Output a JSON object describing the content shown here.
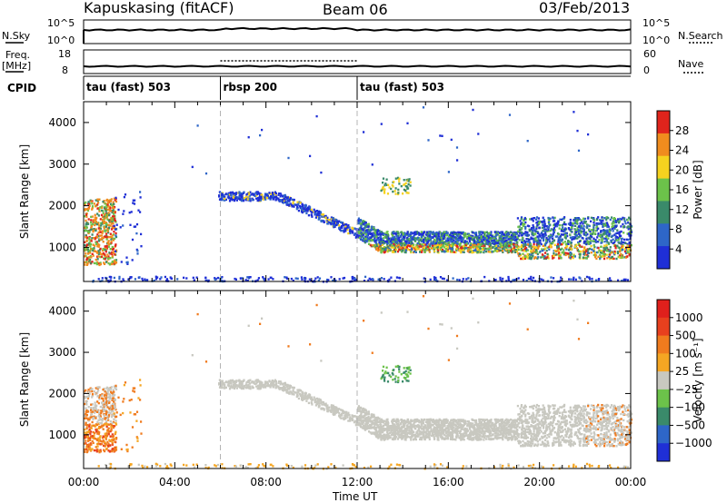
{
  "header": {
    "station": "Kapuskasing (fitACF)",
    "beam": "Beam 06",
    "date": "03/Feb/2013"
  },
  "noise_panel": {
    "left_label": "N.Sky",
    "right_label": "N.Search",
    "left_ticks": [
      "10^5",
      "10^0"
    ],
    "right_ticks": [
      "10^5",
      "10^0"
    ]
  },
  "freq_panel": {
    "left_label_line1": "Freq.",
    "left_label_line2": "[MHz]",
    "right_label": "Nave",
    "left_ticks": [
      "18",
      "8"
    ],
    "right_ticks": [
      "60",
      "0"
    ]
  },
  "cpid": {
    "label": "CPID",
    "segments": [
      {
        "name": "tau (fast) 503",
        "start_h": 0,
        "end_h": 6
      },
      {
        "name": "rbsp 200",
        "start_h": 6,
        "end_h": 12
      },
      {
        "name": "tau (fast) 503",
        "start_h": 12,
        "end_h": 24
      }
    ]
  },
  "colors": {
    "power": [
      "#1f2fd6",
      "#2e66c8",
      "#3a8a6a",
      "#6cc24a",
      "#f5d21f",
      "#f08c1e",
      "#e0241c"
    ],
    "velocity": [
      "#1f2fd6",
      "#2e66c8",
      "#3a8a6a",
      "#6cc24a",
      "#c8c8c0",
      "#f5a623",
      "#f07b1e",
      "#e8401e",
      "#e0201c"
    ]
  },
  "chart_data": [
    {
      "type": "heatmap",
      "title": "Power",
      "xlabel": "Time UT",
      "ylabel": "Slant Range [km]",
      "colorbar_label": "Power [dB]",
      "colorbar_ticks": [
        "28",
        "24",
        "20",
        "16",
        "12",
        "8",
        "4"
      ],
      "x_ticks": [
        "00:00",
        "04:00",
        "08:00",
        "12:00",
        "16:00",
        "20:00",
        "00:00"
      ],
      "y_ticks": [
        "4000",
        "3000",
        "2000",
        "1000"
      ],
      "xlim_hours": [
        0,
        24
      ],
      "ylim_km": [
        180,
        4500
      ]
    },
    {
      "type": "heatmap",
      "title": "Velocity",
      "xlabel": "Time UT",
      "ylabel": "Slant Range [km]",
      "colorbar_label": "Velocity [m s⁻¹]",
      "colorbar_ticks": [
        "1000",
        "500",
        "100",
        "25",
        "−25",
        "−100",
        "−500",
        "−1000"
      ],
      "x_ticks": [
        "00:00",
        "04:00",
        "08:00",
        "12:00",
        "16:00",
        "20:00",
        "00:00"
      ],
      "y_ticks": [
        "4000",
        "3000",
        "2000",
        "1000"
      ],
      "xlim_hours": [
        0,
        24
      ],
      "ylim_km": [
        180,
        4500
      ]
    }
  ],
  "x_axis_title": "Time UT"
}
